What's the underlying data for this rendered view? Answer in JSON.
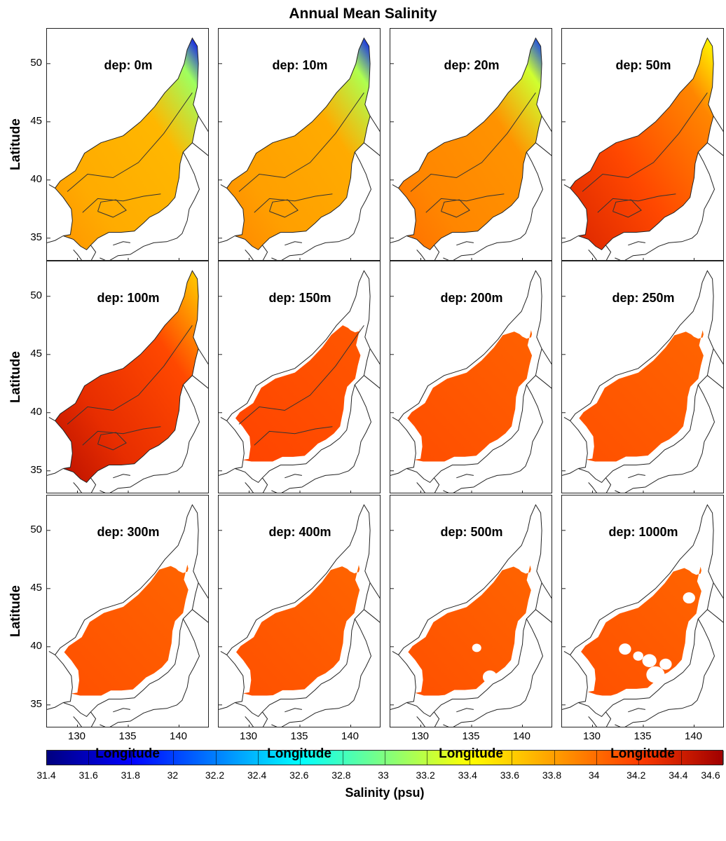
{
  "chart_data": {
    "type": "heatmap",
    "title": "Annual Mean Salinity",
    "xlabel": "Longitude",
    "ylabel": "Latitude",
    "xticks": [
      "130",
      "135",
      "140"
    ],
    "yticks": [
      "50",
      "45",
      "40",
      "35"
    ],
    "panels": [
      {
        "label": "dep: 0m",
        "salinity": 33.7
      },
      {
        "label": "dep: 10m",
        "salinity": 33.75
      },
      {
        "label": "dep: 20m",
        "salinity": 33.85
      },
      {
        "label": "dep: 50m",
        "salinity": 34.1
      },
      {
        "label": "dep: 100m",
        "salinity": 34.2
      },
      {
        "label": "dep: 150m",
        "salinity": 34.12
      },
      {
        "label": "dep: 200m",
        "salinity": 34.08
      },
      {
        "label": "dep: 250m",
        "salinity": 34.07
      },
      {
        "label": "dep: 300m",
        "salinity": 34.07
      },
      {
        "label": "dep: 400m",
        "salinity": 34.07
      },
      {
        "label": "dep: 500m",
        "salinity": 34.07
      },
      {
        "label": "dep: 1000m",
        "salinity": 34.07
      }
    ],
    "colorbar": {
      "label": "Salinity (psu)",
      "ticks": [
        "31.4",
        "31.6",
        "31.8",
        "32",
        "32.2",
        "32.4",
        "32.6",
        "32.8",
        "33",
        "33.2",
        "33.4",
        "33.6",
        "33.8",
        "34",
        "34.2",
        "34.4",
        "34.6"
      ],
      "range": [
        31.4,
        34.6
      ],
      "colors": [
        "#00007f",
        "#0000ff",
        "#007fff",
        "#00ffff",
        "#7fff7f",
        "#ffff00",
        "#ff9f00",
        "#ff3c00",
        "#a00000"
      ]
    }
  }
}
